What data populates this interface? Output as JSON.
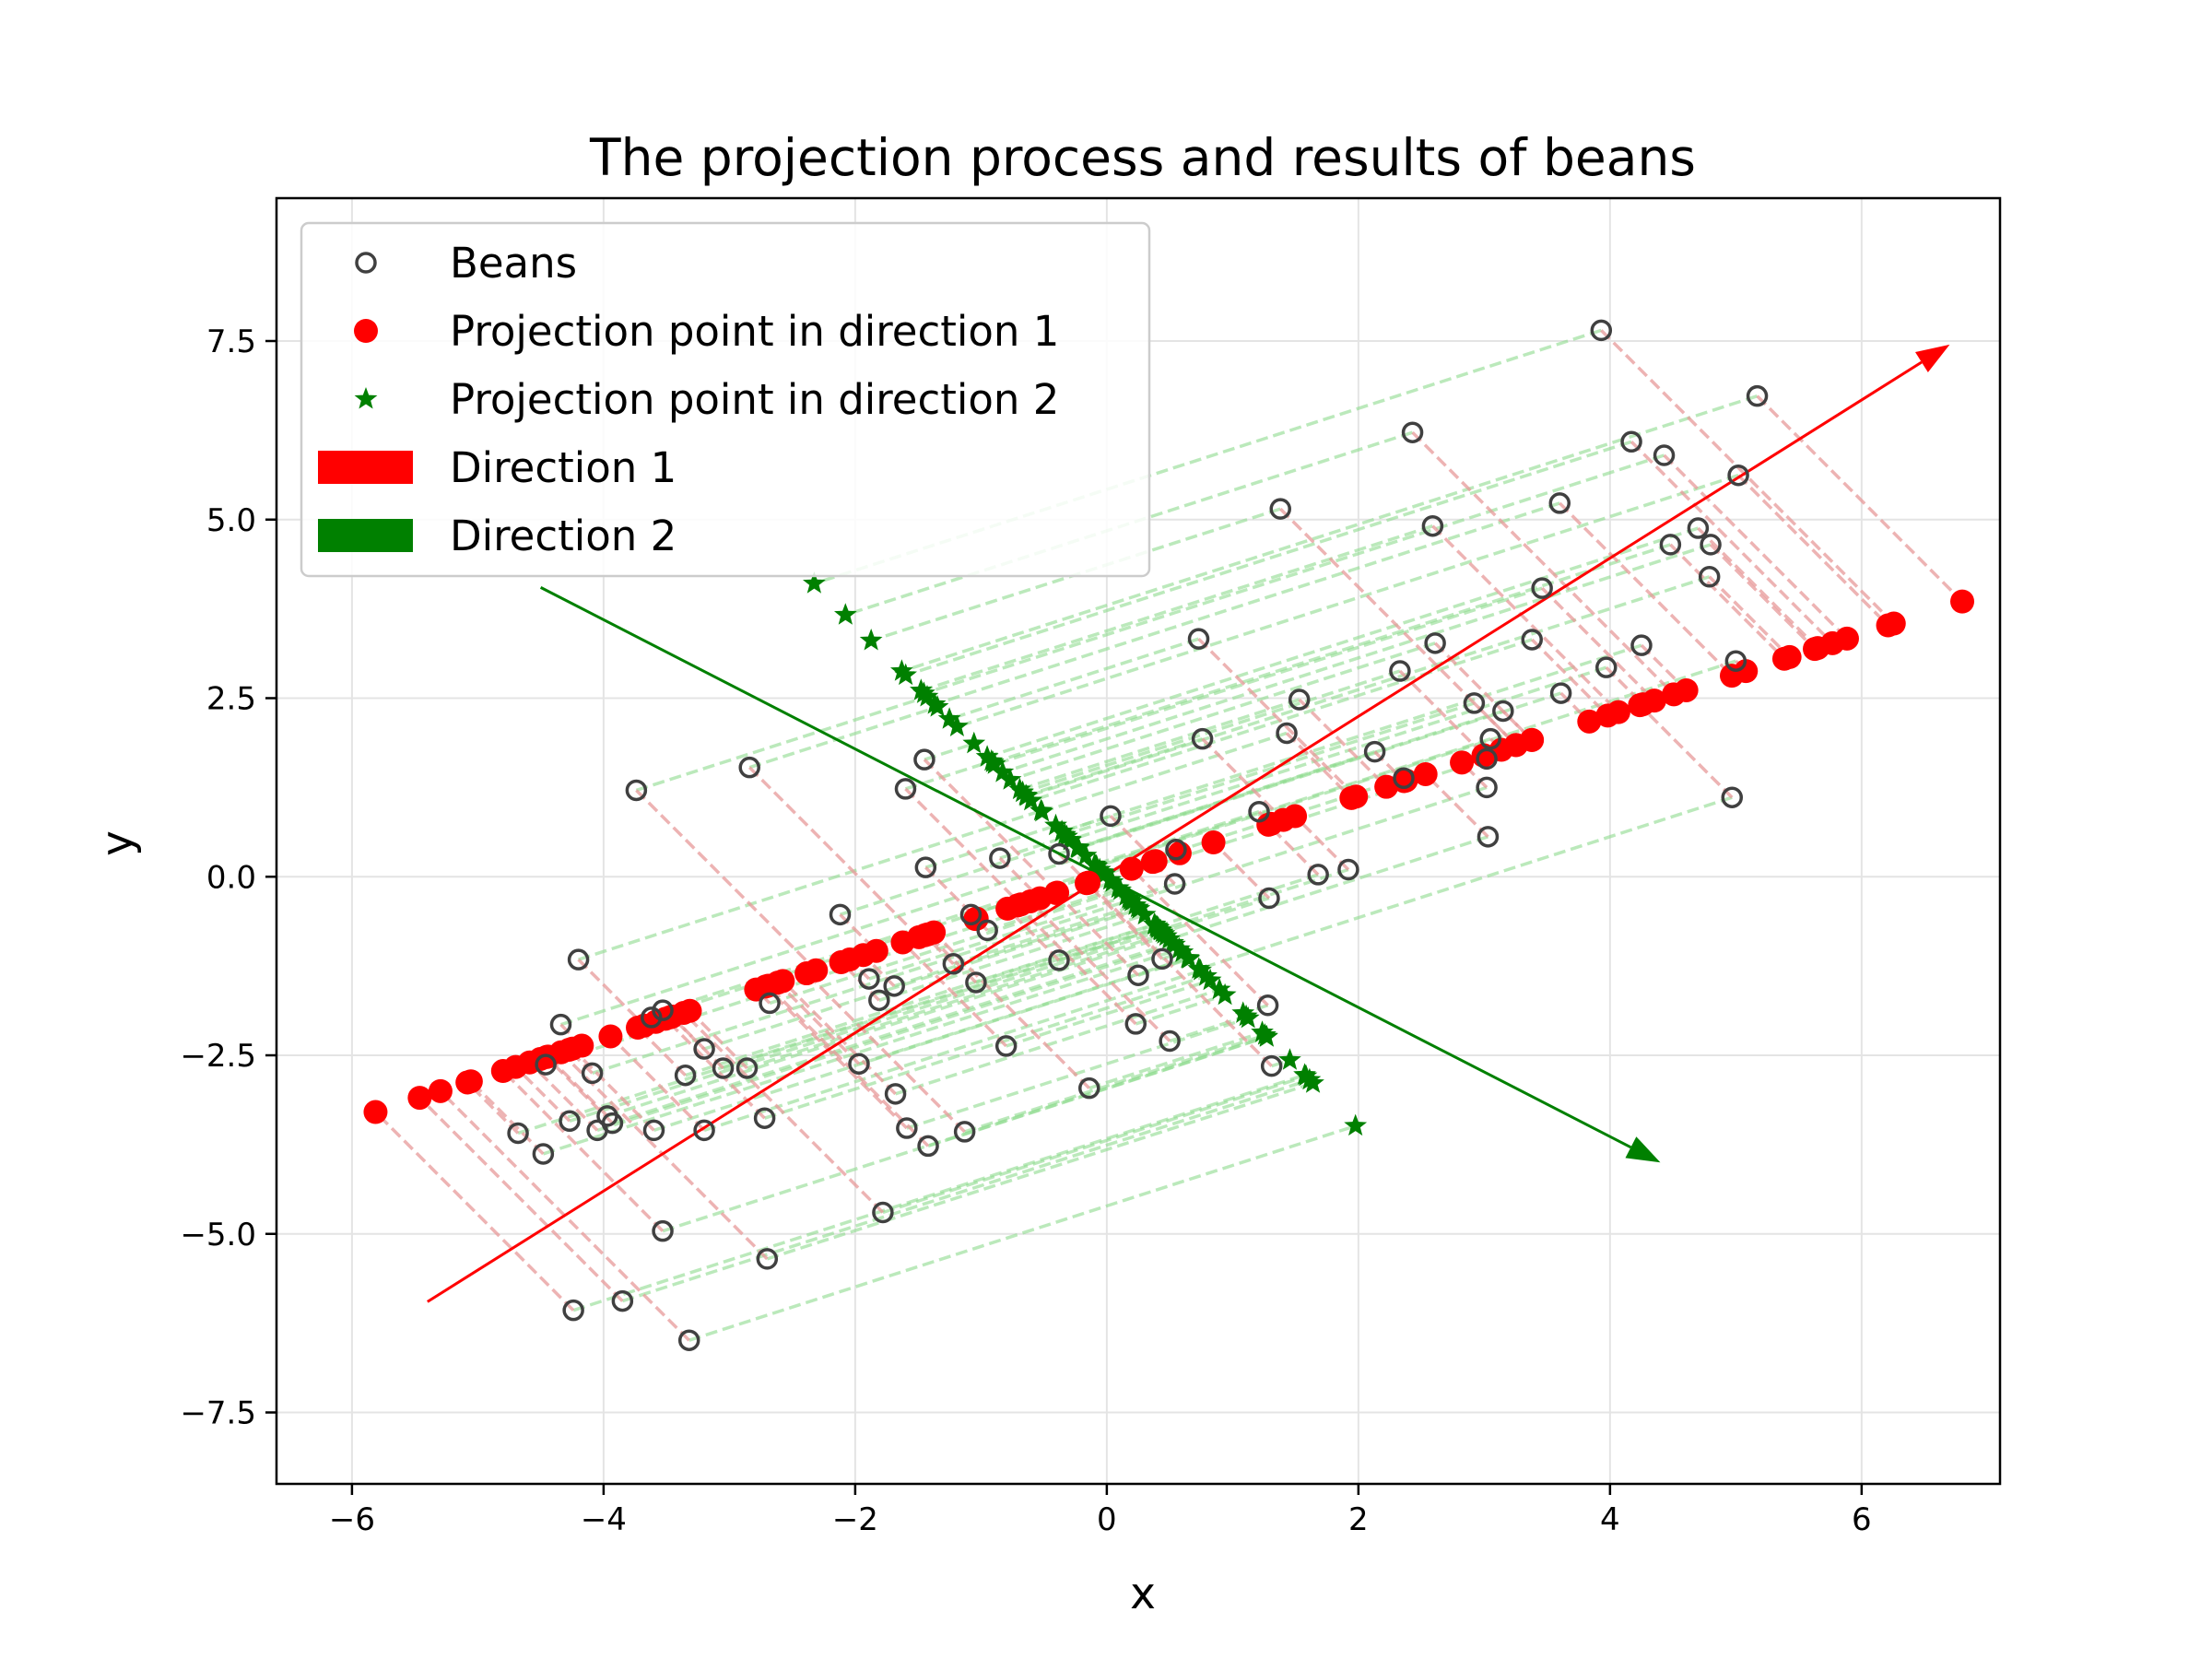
{
  "chart_data": {
    "type": "scatter",
    "title": "The projection process and results of beans",
    "xlabel": "x",
    "ylabel": "y",
    "xlim": [
      -6.6,
      7.1
    ],
    "ylim": [
      -8.5,
      9.5
    ],
    "xticks": [
      -6,
      -4,
      -2,
      0,
      2,
      4,
      6
    ],
    "yticks": [
      -7.5,
      -5.0,
      -2.5,
      0.0,
      2.5,
      5.0,
      7.5
    ],
    "xtick_labels": [
      "−6",
      "−4",
      "−2",
      "0",
      "2",
      "4",
      "6"
    ],
    "ytick_labels": [
      "−7.5",
      "−5.0",
      "−2.5",
      "0.0",
      "2.5",
      "5.0",
      "7.5"
    ],
    "grid": true,
    "legend_position": "upper-left",
    "legend": [
      {
        "label": "Beans",
        "marker": "open-circle",
        "color": "#404040"
      },
      {
        "label": "Projection point in direction 1",
        "marker": "circle",
        "color": "#ff0000"
      },
      {
        "label": "Projection point in direction 2",
        "marker": "star",
        "color": "#008000"
      },
      {
        "label": "Direction 1",
        "marker": "patch",
        "color": "#ff0000"
      },
      {
        "label": "Direction 2",
        "marker": "patch",
        "color": "#008000"
      }
    ],
    "colors": {
      "beans": "#404040",
      "direction1": "#ff0000",
      "direction2": "#008000",
      "proj1_line": "#e89a9a",
      "proj2_line": "#8fdc8f"
    },
    "direction1_vector": [
      0.87,
      0.493
    ],
    "direction2_vector": [
      0.493,
      -0.87
    ],
    "direction1_arrow": {
      "start": [
        -5.4,
        -5.95
      ],
      "end": [
        6.7,
        7.45
      ]
    },
    "direction2_arrow": {
      "start": [
        -4.5,
        4.05
      ],
      "end": [
        4.4,
        -4.0
      ]
    },
    "beans": [
      [
        3.93,
        7.65
      ],
      [
        5.17,
        6.73
      ],
      [
        2.43,
        6.22
      ],
      [
        4.17,
        6.09
      ],
      [
        4.43,
        5.9
      ],
      [
        5.02,
        5.62
      ],
      [
        3.6,
        5.23
      ],
      [
        1.38,
        5.15
      ],
      [
        2.59,
        4.91
      ],
      [
        4.7,
        4.88
      ],
      [
        4.48,
        4.65
      ],
      [
        4.8,
        4.65
      ],
      [
        4.79,
        4.2
      ],
      [
        3.46,
        4.04
      ],
      [
        3.38,
        3.32
      ],
      [
        0.73,
        3.33
      ],
      [
        2.61,
        3.27
      ],
      [
        4.25,
        3.24
      ],
      [
        2.33,
        2.88
      ],
      [
        3.97,
        2.93
      ],
      [
        5.0,
        3.02
      ],
      [
        3.61,
        2.57
      ],
      [
        1.53,
        2.48
      ],
      [
        2.92,
        2.43
      ],
      [
        3.15,
        2.32
      ],
      [
        1.43,
        2.01
      ],
      [
        0.76,
        1.93
      ],
      [
        3.05,
        1.93
      ],
      [
        2.13,
        1.75
      ],
      [
        3.02,
        1.65
      ],
      [
        -2.84,
        1.53
      ],
      [
        -1.45,
        1.64
      ],
      [
        2.36,
        1.38
      ],
      [
        -3.74,
        1.21
      ],
      [
        -1.6,
        1.23
      ],
      [
        3.02,
        1.25
      ],
      [
        4.97,
        1.11
      ],
      [
        1.21,
        0.91
      ],
      [
        0.03,
        0.85
      ],
      [
        3.03,
        0.56
      ],
      [
        0.55,
        0.38
      ],
      [
        -0.38,
        0.32
      ],
      [
        -0.85,
        0.26
      ],
      [
        -1.44,
        0.13
      ],
      [
        1.92,
        0.1
      ],
      [
        1.68,
        0.03
      ],
      [
        0.54,
        -0.1
      ],
      [
        1.29,
        -0.3
      ],
      [
        -2.12,
        -0.53
      ],
      [
        -1.08,
        -0.53
      ],
      [
        -0.95,
        -0.75
      ],
      [
        -1.22,
        -1.22
      ],
      [
        -0.38,
        -1.17
      ],
      [
        -4.2,
        -1.16
      ],
      [
        0.44,
        -1.15
      ],
      [
        -1.89,
        -1.43
      ],
      [
        -1.69,
        -1.53
      ],
      [
        -1.04,
        -1.48
      ],
      [
        0.25,
        -1.38
      ],
      [
        -1.81,
        -1.73
      ],
      [
        -2.68,
        -1.77
      ],
      [
        -3.53,
        -1.87
      ],
      [
        -3.62,
        -1.97
      ],
      [
        -4.34,
        -2.07
      ],
      [
        0.23,
        -2.06
      ],
      [
        1.28,
        -1.8
      ],
      [
        0.5,
        -2.3
      ],
      [
        -0.8,
        -2.37
      ],
      [
        -3.2,
        -2.41
      ],
      [
        -3.05,
        -2.68
      ],
      [
        -2.86,
        -2.68
      ],
      [
        -4.46,
        -2.63
      ],
      [
        -4.09,
        -2.75
      ],
      [
        -3.35,
        -2.78
      ],
      [
        -1.97,
        -2.62
      ],
      [
        1.31,
        -2.65
      ],
      [
        -0.14,
        -2.96
      ],
      [
        -1.68,
        -3.04
      ],
      [
        -3.6,
        -3.55
      ],
      [
        -3.2,
        -3.55
      ],
      [
        -3.93,
        -3.45
      ],
      [
        -3.97,
        -3.35
      ],
      [
        -2.72,
        -3.38
      ],
      [
        -4.27,
        -3.42
      ],
      [
        -4.05,
        -3.55
      ],
      [
        -4.68,
        -3.59
      ],
      [
        -1.59,
        -3.52
      ],
      [
        -1.13,
        -3.57
      ],
      [
        -4.48,
        -3.88
      ],
      [
        -1.42,
        -3.77
      ],
      [
        -1.78,
        -4.7
      ],
      [
        -3.53,
        -4.96
      ],
      [
        -2.7,
        -5.35
      ],
      [
        -3.85,
        -5.94
      ],
      [
        -4.24,
        -6.07
      ],
      [
        -3.32,
        -6.49
      ]
    ]
  }
}
